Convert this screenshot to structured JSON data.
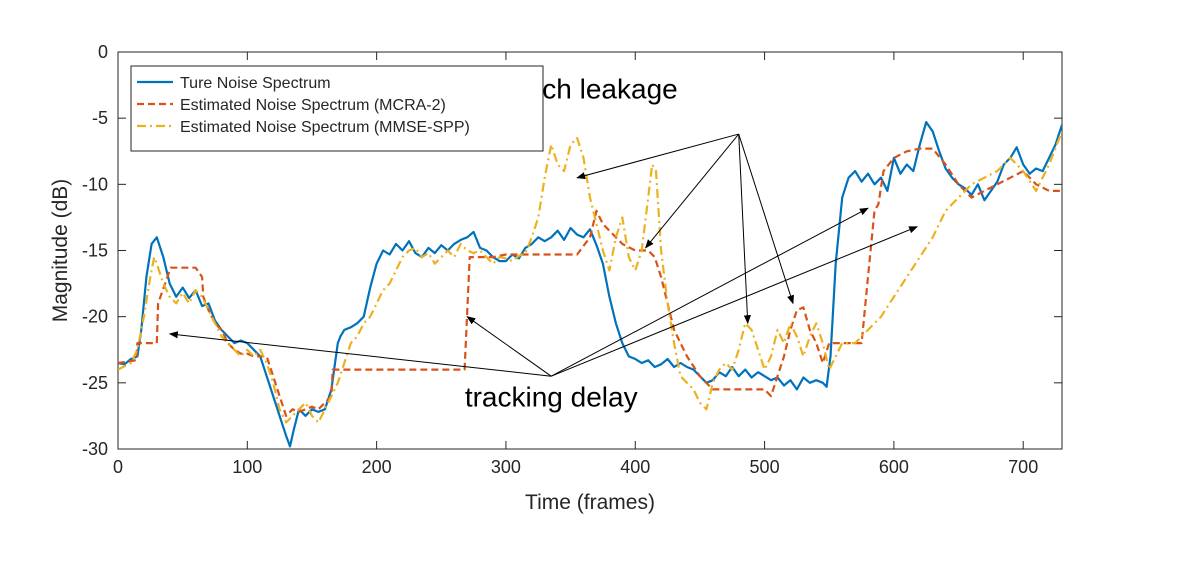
{
  "chart_data": {
    "type": "line",
    "xlabel": "Time (frames)",
    "ylabel": "Magnitude (dB)",
    "xlim": [
      0,
      730
    ],
    "ylim": [
      -30,
      0
    ],
    "xticks": [
      0,
      100,
      200,
      300,
      400,
      500,
      600,
      700
    ],
    "yticks": [
      0,
      -5,
      -10,
      -15,
      -20,
      -25,
      -30
    ],
    "grid": false,
    "legend_position": "top-left",
    "series": [
      {
        "name": "Ture Noise Spectrum",
        "color": "#0072BD",
        "style": "solid",
        "x": [
          0,
          5,
          10,
          15,
          18,
          22,
          26,
          30,
          35,
          40,
          45,
          50,
          55,
          60,
          65,
          70,
          75,
          80,
          85,
          90,
          95,
          100,
          105,
          110,
          115,
          120,
          125,
          130,
          133,
          136,
          140,
          145,
          150,
          155,
          160,
          165,
          170,
          172,
          175,
          180,
          185,
          190,
          195,
          200,
          205,
          210,
          215,
          220,
          225,
          230,
          235,
          240,
          245,
          250,
          255,
          260,
          265,
          270,
          275,
          280,
          285,
          290,
          295,
          300,
          305,
          310,
          315,
          320,
          325,
          330,
          335,
          340,
          345,
          350,
          355,
          360,
          365,
          370,
          375,
          380,
          385,
          390,
          395,
          400,
          405,
          410,
          415,
          420,
          425,
          430,
          435,
          440,
          445,
          450,
          455,
          460,
          465,
          470,
          475,
          480,
          485,
          490,
          495,
          500,
          505,
          510,
          515,
          520,
          525,
          530,
          535,
          540,
          545,
          548,
          551,
          555,
          560,
          565,
          570,
          575,
          580,
          585,
          590,
          595,
          600,
          605,
          610,
          615,
          620,
          625,
          630,
          635,
          640,
          645,
          650,
          655,
          660,
          665,
          670,
          675,
          680,
          685,
          690,
          695,
          700,
          705,
          710,
          715,
          720,
          725,
          730
        ],
        "values": [
          -23.5,
          -23.6,
          -23.2,
          -23.0,
          -21.0,
          -17.0,
          -14.5,
          -14.0,
          -15.5,
          -17.5,
          -18.5,
          -17.8,
          -18.6,
          -18.0,
          -19.2,
          -19.0,
          -20.3,
          -21.0,
          -21.5,
          -22.0,
          -21.8,
          -22.0,
          -22.5,
          -23.0,
          -24.5,
          -26.0,
          -27.5,
          -29.0,
          -29.8,
          -28.5,
          -27.0,
          -27.5,
          -27.0,
          -27.2,
          -27.0,
          -25.5,
          -22.0,
          -21.5,
          -21.0,
          -20.8,
          -20.5,
          -20.0,
          -17.8,
          -16.0,
          -15.0,
          -15.3,
          -14.5,
          -15.0,
          -14.3,
          -15.2,
          -15.5,
          -14.8,
          -15.2,
          -14.6,
          -15.0,
          -14.5,
          -14.2,
          -14.0,
          -13.6,
          -14.8,
          -15.0,
          -15.5,
          -15.8,
          -15.8,
          -15.3,
          -15.6,
          -14.8,
          -14.5,
          -14.0,
          -14.3,
          -14.0,
          -13.5,
          -14.2,
          -13.3,
          -13.8,
          -14.0,
          -13.4,
          -14.6,
          -16.0,
          -18.5,
          -20.5,
          -22.0,
          -23.0,
          -23.2,
          -23.5,
          -23.3,
          -23.8,
          -23.6,
          -23.2,
          -23.8,
          -23.5,
          -23.8,
          -24.0,
          -24.5,
          -25.0,
          -24.8,
          -24.2,
          -24.5,
          -23.8,
          -24.5,
          -24.0,
          -24.6,
          -24.2,
          -24.5,
          -24.8,
          -24.6,
          -25.2,
          -24.8,
          -25.5,
          -24.6,
          -25.0,
          -24.8,
          -25.0,
          -25.3,
          -23.0,
          -16.0,
          -11.0,
          -9.5,
          -9.0,
          -9.8,
          -9.2,
          -10.0,
          -9.5,
          -10.5,
          -8.0,
          -9.2,
          -8.5,
          -9.0,
          -7.0,
          -5.3,
          -6.0,
          -7.5,
          -8.8,
          -9.5,
          -10.0,
          -10.3,
          -10.8,
          -10.0,
          -11.2,
          -10.5,
          -9.8,
          -8.5,
          -8.0,
          -7.2,
          -8.5,
          -9.2,
          -8.8,
          -9.0,
          -8.0,
          -7.0,
          -5.5
        ]
      },
      {
        "name": "Estimated Noise Spectrum (MCRA-2)",
        "color": "#D95319",
        "style": "dashed",
        "x": [
          0,
          14,
          15,
          30,
          31,
          40,
          41,
          45,
          60,
          65,
          66,
          70,
          75,
          80,
          85,
          90,
          95,
          100,
          105,
          110,
          115,
          120,
          125,
          130,
          135,
          140,
          145,
          150,
          155,
          160,
          165,
          166,
          170,
          180,
          200,
          220,
          240,
          260,
          268,
          272,
          275,
          280,
          290,
          300,
          320,
          340,
          355,
          365,
          370,
          375,
          380,
          385,
          390,
          400,
          410,
          415,
          420,
          425,
          430,
          440,
          450,
          460,
          470,
          480,
          500,
          505,
          510,
          515,
          520,
          525,
          530,
          535,
          540,
          545,
          550,
          560,
          575,
          580,
          585,
          588,
          592,
          600,
          610,
          620,
          630,
          640,
          650,
          660,
          670,
          680,
          690,
          700,
          710,
          720,
          730
        ],
        "values": [
          -23.5,
          -23.3,
          -22.0,
          -22.0,
          -19.0,
          -16.5,
          -16.3,
          -16.3,
          -16.3,
          -17.0,
          -18.5,
          -19.5,
          -20.5,
          -21.0,
          -22.0,
          -22.5,
          -22.8,
          -22.8,
          -23.0,
          -23.0,
          -23.0,
          -24.5,
          -26.0,
          -27.5,
          -27.0,
          -27.2,
          -27.0,
          -26.8,
          -27.0,
          -26.5,
          -26.0,
          -24.0,
          -24.0,
          -24.0,
          -24.0,
          -24.0,
          -24.0,
          -24.0,
          -24.0,
          -15.5,
          -15.5,
          -15.5,
          -15.5,
          -15.3,
          -15.3,
          -15.3,
          -15.3,
          -14.0,
          -12.0,
          -13.0,
          -13.5,
          -14.0,
          -14.5,
          -15.0,
          -15.0,
          -15.5,
          -17.0,
          -19.0,
          -21.0,
          -23.0,
          -24.5,
          -25.5,
          -25.5,
          -25.5,
          -25.5,
          -26.0,
          -24.5,
          -23.0,
          -21.0,
          -19.5,
          -19.3,
          -21.0,
          -22.0,
          -23.5,
          -22.0,
          -22.0,
          -22.0,
          -17.0,
          -12.0,
          -11.5,
          -9.0,
          -8.0,
          -7.5,
          -7.3,
          -7.3,
          -8.5,
          -10.0,
          -11.0,
          -10.5,
          -10.0,
          -9.5,
          -9.0,
          -10.0,
          -10.5,
          -10.5
        ]
      },
      {
        "name": "Estimated Noise Spectrum (MMSE-SPP)",
        "color": "#EDB120",
        "style": "dashdot",
        "x": [
          0,
          10,
          15,
          20,
          25,
          28,
          30,
          35,
          40,
          45,
          50,
          55,
          60,
          65,
          70,
          75,
          80,
          85,
          90,
          95,
          100,
          105,
          110,
          115,
          120,
          125,
          130,
          135,
          140,
          145,
          150,
          155,
          160,
          165,
          170,
          175,
          180,
          185,
          190,
          195,
          200,
          205,
          210,
          215,
          220,
          225,
          230,
          235,
          240,
          245,
          250,
          255,
          260,
          265,
          270,
          275,
          280,
          285,
          290,
          295,
          300,
          305,
          310,
          315,
          320,
          325,
          330,
          335,
          340,
          345,
          350,
          355,
          360,
          365,
          370,
          375,
          380,
          385,
          390,
          395,
          400,
          405,
          410,
          413,
          416,
          420,
          425,
          430,
          435,
          440,
          445,
          450,
          455,
          460,
          465,
          470,
          475,
          480,
          485,
          490,
          495,
          500,
          505,
          510,
          515,
          520,
          525,
          530,
          535,
          540,
          545,
          550,
          555,
          560,
          570,
          580,
          590,
          600,
          610,
          620,
          630,
          640,
          650,
          660,
          670,
          680,
          690,
          700,
          710,
          720,
          730
        ],
        "values": [
          -24.0,
          -23.5,
          -22.5,
          -20.0,
          -17.0,
          -15.5,
          -16.0,
          -17.5,
          -18.5,
          -19.0,
          -18.2,
          -19.0,
          -18.0,
          -18.5,
          -19.5,
          -20.5,
          -21.5,
          -22.0,
          -22.5,
          -23.0,
          -22.5,
          -23.0,
          -22.5,
          -23.5,
          -25.0,
          -27.0,
          -28.0,
          -27.5,
          -27.0,
          -26.5,
          -27.5,
          -28.0,
          -27.0,
          -26.0,
          -25.0,
          -23.5,
          -22.0,
          -21.5,
          -20.5,
          -20.0,
          -19.0,
          -18.0,
          -17.5,
          -16.5,
          -15.5,
          -15.0,
          -14.8,
          -15.5,
          -15.2,
          -16.0,
          -15.5,
          -15.0,
          -15.5,
          -14.5,
          -15.0,
          -15.2,
          -15.0,
          -15.5,
          -16.0,
          -15.5,
          -15.6,
          -15.8,
          -15.4,
          -15.2,
          -14.0,
          -12.5,
          -9.5,
          -7.0,
          -8.5,
          -9.0,
          -7.0,
          -6.5,
          -8.0,
          -11.0,
          -13.0,
          -15.0,
          -16.5,
          -14.0,
          -12.5,
          -15.5,
          -16.5,
          -15.0,
          -11.0,
          -8.5,
          -9.0,
          -15.0,
          -19.0,
          -22.0,
          -24.5,
          -25.0,
          -25.5,
          -26.5,
          -27.0,
          -25.0,
          -24.0,
          -23.5,
          -24.0,
          -22.5,
          -20.5,
          -21.0,
          -22.5,
          -24.0,
          -23.0,
          -21.0,
          -22.0,
          -20.5,
          -21.5,
          -23.0,
          -21.5,
          -20.5,
          -22.0,
          -24.0,
          -23.0,
          -22.0,
          -22.0,
          -21.0,
          -20.0,
          -18.5,
          -17.0,
          -15.5,
          -14.0,
          -12.0,
          -11.0,
          -10.0,
          -9.5,
          -9.0,
          -8.0,
          -9.0,
          -10.5,
          -8.5,
          -6.0
        ]
      }
    ],
    "annotations": [
      {
        "text": "speech leakage",
        "x": 357,
        "y": -3.5
      },
      {
        "text": "tracking delay",
        "x": 335,
        "y": -26.8
      }
    ],
    "arrows": [
      {
        "from": [
          335,
          -24.5
        ],
        "to": [
          40,
          -21.3
        ]
      },
      {
        "from": [
          335,
          -24.5
        ],
        "to": [
          270,
          -20.0
        ]
      },
      {
        "from": [
          335,
          -24.5
        ],
        "to": [
          580,
          -11.8
        ]
      },
      {
        "from": [
          335,
          -24.5
        ],
        "to": [
          618,
          -13.2
        ]
      },
      {
        "from": [
          480,
          -6.2
        ],
        "to": [
          355,
          -9.5
        ]
      },
      {
        "from": [
          480,
          -6.2
        ],
        "to": [
          408,
          -14.8
        ]
      },
      {
        "from": [
          480,
          -6.2
        ],
        "to": [
          487,
          -20.5
        ]
      },
      {
        "from": [
          480,
          -6.2
        ],
        "to": [
          522,
          -19.0
        ]
      }
    ]
  }
}
